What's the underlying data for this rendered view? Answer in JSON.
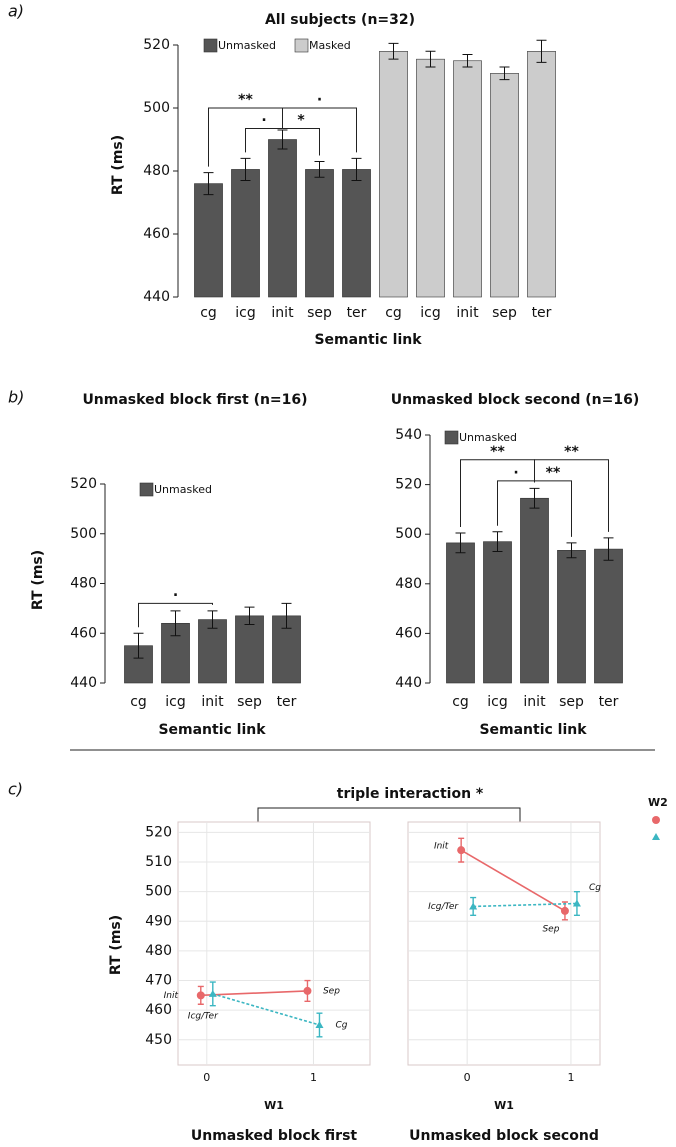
{
  "panel_labels": [
    "a)",
    "b)",
    "c)"
  ],
  "annotation": "triple interaction *",
  "chart_data": [
    {
      "type": "bar",
      "title": "All subjects (n=32)",
      "x_label": "Semantic link",
      "y_label": "RT (ms)",
      "categories": [
        "cg",
        "icg",
        "init",
        "sep",
        "ter",
        "cg",
        "icg",
        "init",
        "sep",
        "ter"
      ],
      "series": [
        {
          "name": "Unmasked",
          "color": "#555555",
          "values": [
            476,
            480.5,
            490,
            480.5,
            480.5,
            null,
            null,
            null,
            null,
            null
          ],
          "errors": [
            3.5,
            3.5,
            3,
            2.5,
            3.5,
            null,
            null,
            null,
            null,
            null
          ]
        },
        {
          "name": "Masked",
          "color": "#cccccc",
          "values": [
            null,
            null,
            null,
            null,
            null,
            518,
            515.5,
            515,
            511,
            518
          ],
          "errors": [
            null,
            null,
            null,
            null,
            null,
            2.5,
            2.5,
            2,
            2,
            3.5
          ]
        }
      ],
      "annotations": [
        "**",
        "·",
        "*",
        "·"
      ],
      "ylim": [
        440,
        520
      ],
      "yticks": [
        440,
        460,
        480,
        500,
        520
      ]
    },
    {
      "type": "bar",
      "title": "Unmasked block first (n=16)",
      "x_label": "Semantic link",
      "y_label": "RT (ms)",
      "categories": [
        "cg",
        "icg",
        "init",
        "sep",
        "ter"
      ],
      "series": [
        {
          "name": "Unmasked",
          "color": "#555555",
          "values": [
            455,
            464,
            465.5,
            467,
            467
          ],
          "errors": [
            5,
            5,
            3.5,
            3.5,
            5
          ]
        }
      ],
      "annotations": [
        "·"
      ],
      "ylim": [
        440,
        520
      ],
      "yticks": [
        440,
        460,
        480,
        500,
        520
      ]
    },
    {
      "type": "bar",
      "title": "Unmasked block second (n=16)",
      "x_label": "Semantic link",
      "categories": [
        "cg",
        "icg",
        "init",
        "sep",
        "ter"
      ],
      "series": [
        {
          "name": "Unmasked",
          "color": "#555555",
          "values": [
            496.5,
            497,
            514.5,
            493.5,
            494
          ],
          "errors": [
            4,
            4,
            4,
            3,
            4.5
          ]
        }
      ],
      "annotations": [
        "**",
        "·",
        "**",
        "**"
      ],
      "ylim": [
        440,
        540
      ],
      "yticks": [
        440,
        460,
        480,
        500,
        520,
        540
      ]
    },
    {
      "type": "line",
      "title": "Unmasked block first",
      "x_label": "W1",
      "y_label": "RT (ms)",
      "x": [
        0,
        1
      ],
      "xlim": [
        -0.27,
        1.53
      ],
      "xticks": [
        0,
        1
      ],
      "ylim": [
        441.5,
        523.5
      ],
      "yticks": [
        450,
        460,
        470,
        480,
        490,
        500,
        510,
        520
      ],
      "grid": true,
      "series": [
        {
          "color": "#e8686a",
          "marker": "circle",
          "line_style": "solid",
          "values": [
            465,
            466.5
          ],
          "errors": [
            3,
            3.5
          ],
          "point_labels": [
            "Init",
            "Sep"
          ]
        },
        {
          "color": "#3bb6c2",
          "marker": "triangle",
          "line_style": "dashed",
          "values": [
            465.5,
            455
          ],
          "errors": [
            4,
            4
          ],
          "point_labels": [
            "Icg/Ter",
            "Cg"
          ]
        }
      ]
    },
    {
      "type": "line",
      "title": "Unmasked block second",
      "x_label": "W1",
      "legend_title": "W2",
      "x": [
        0,
        1
      ],
      "xlim": [
        -0.57,
        1.28
      ],
      "xticks": [
        0,
        1
      ],
      "ylim": [
        441.5,
        523.5
      ],
      "yticks": [
        450,
        460,
        470,
        480,
        490,
        500,
        510,
        520
      ],
      "grid": true,
      "series": [
        {
          "color": "#e8686a",
          "marker": "circle",
          "line_style": "solid",
          "values": [
            514,
            493.5
          ],
          "errors": [
            4,
            3
          ],
          "point_labels": [
            "Init",
            "Sep"
          ]
        },
        {
          "color": "#3bb6c2",
          "marker": "triangle",
          "line_style": "dashed",
          "values": [
            495,
            496
          ],
          "errors": [
            3,
            4
          ],
          "point_labels": [
            "Icg/Ter",
            "Cg"
          ]
        }
      ]
    }
  ]
}
